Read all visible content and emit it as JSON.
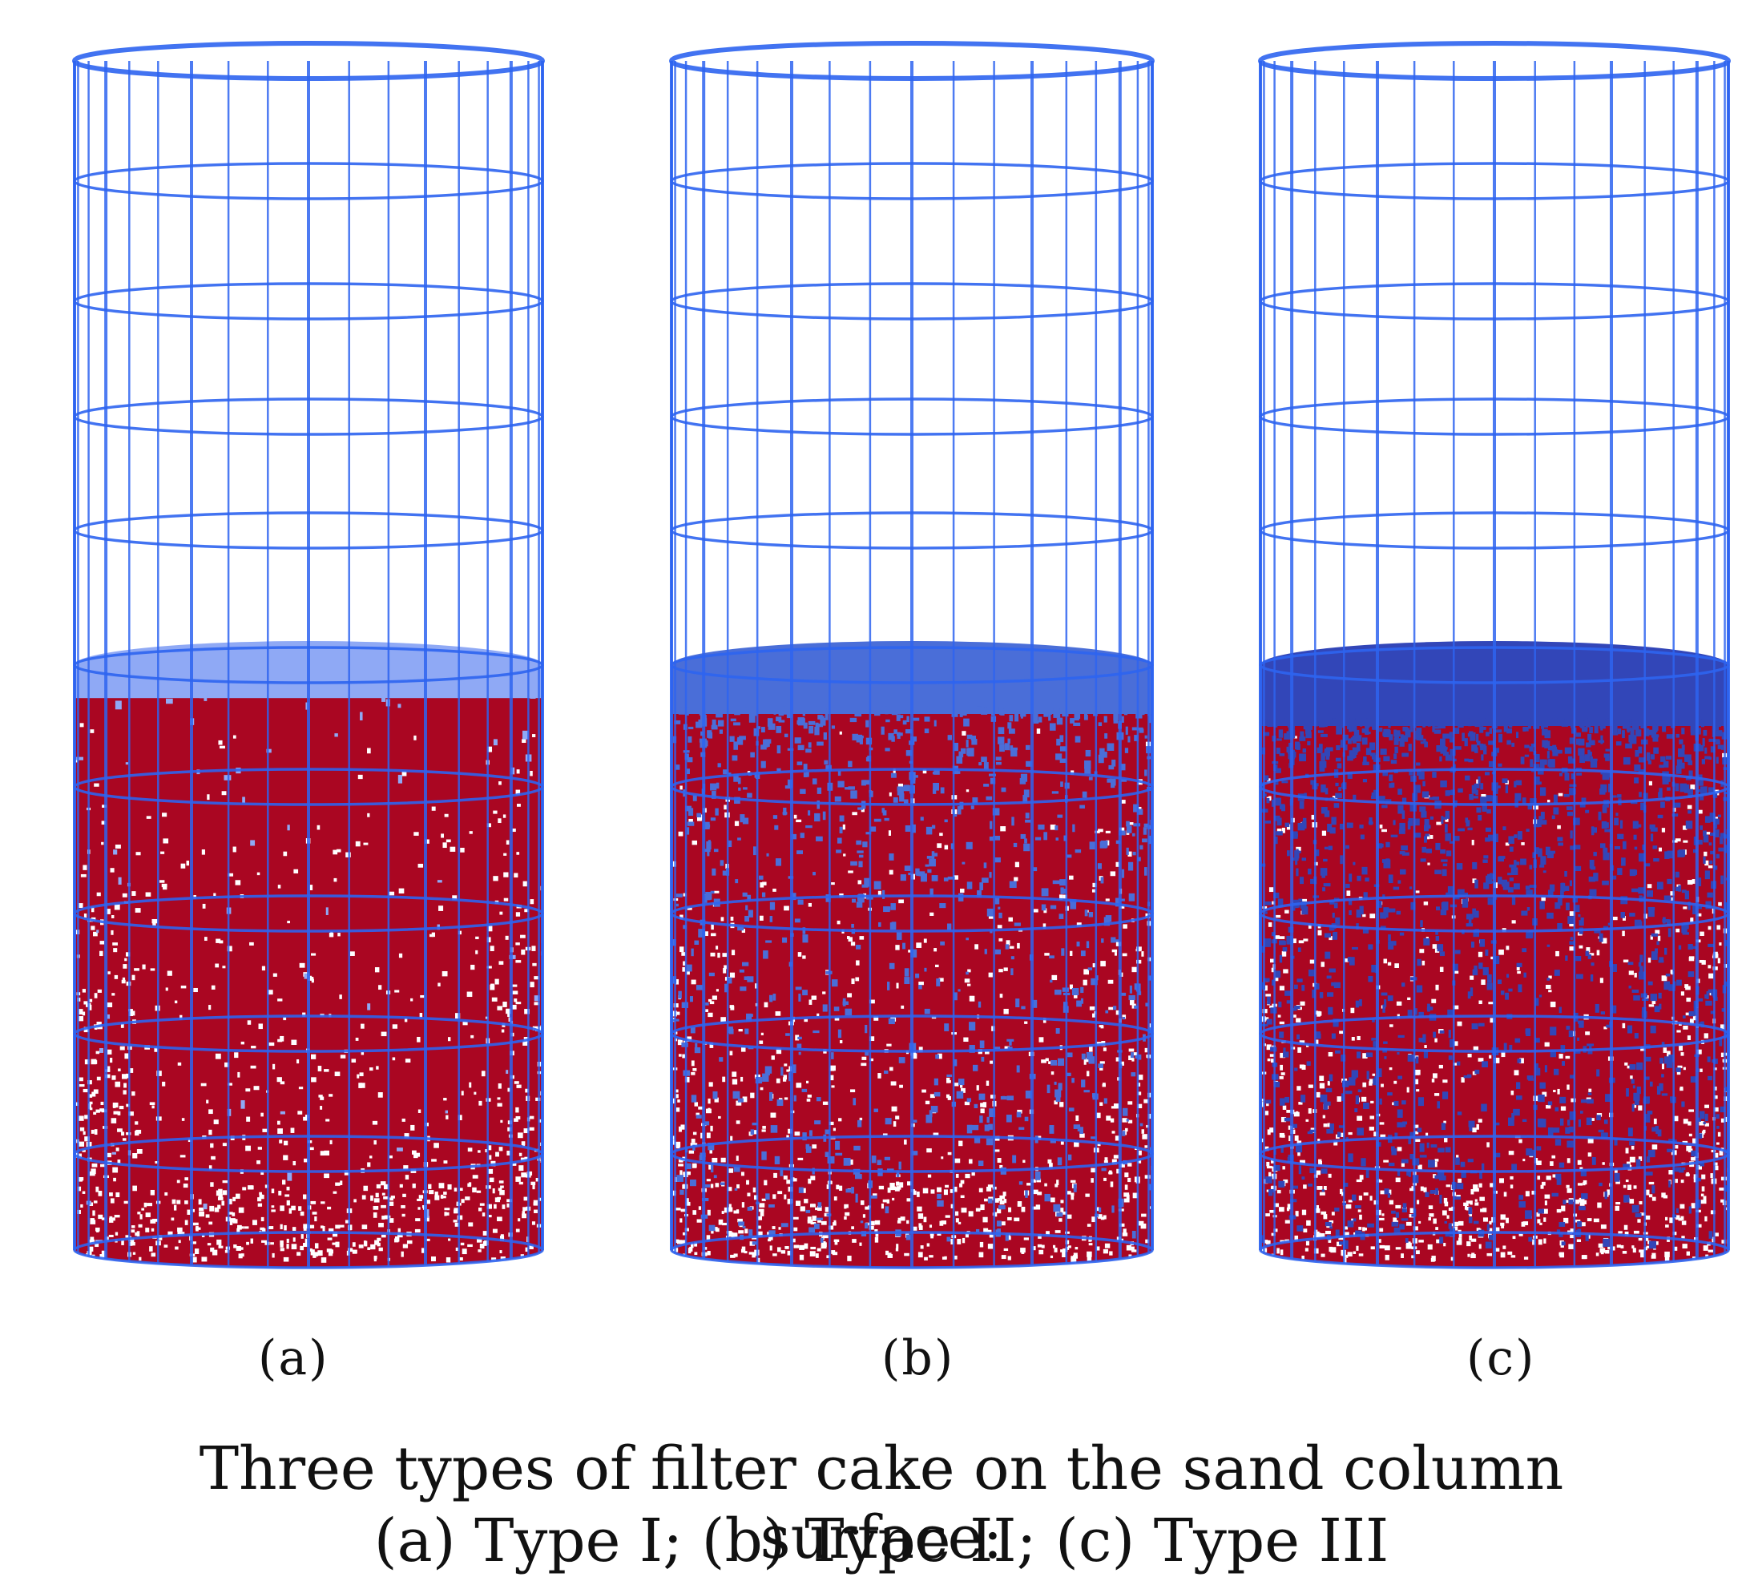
{
  "panels": [
    {
      "label": "(a)",
      "cake_color": "#8fa9f5",
      "blue_intrusion": 0.02
    },
    {
      "label": "(b)",
      "cake_color": "#4a6ed8",
      "blue_intrusion": 0.35
    },
    {
      "label": "(c)",
      "cake_color": "#3246b8",
      "blue_intrusion": 0.6
    }
  ],
  "colors": {
    "mesh": "#2e64f0",
    "sand": "#aa0622",
    "background": "#ffffff"
  },
  "caption": {
    "line1": "Three types of filter cake on the sand column surface:",
    "line2": "(a) Type I; (b) Type II; (c) Type III"
  }
}
